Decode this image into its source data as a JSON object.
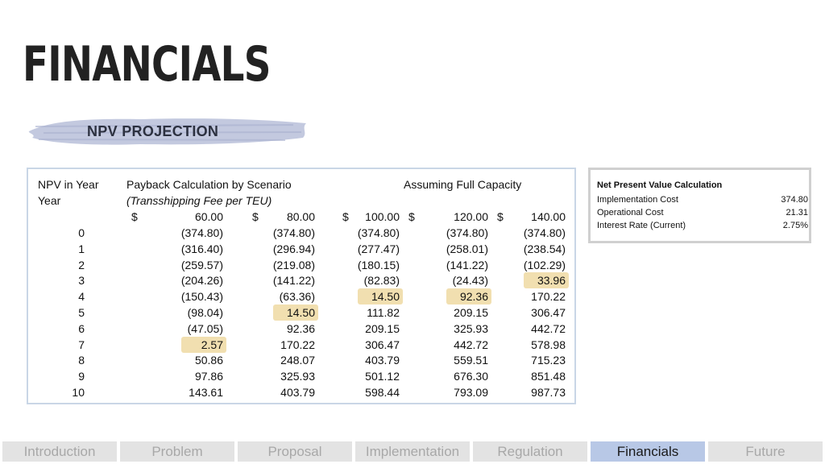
{
  "title": "FINANCIALS",
  "section_label": "NPV PROJECTION",
  "table": {
    "h1_left": "NPV in Year",
    "h1_mid": "Payback Calculation by Scenario",
    "h1_right": "Assuming Full Capacity",
    "h2_left": "Year",
    "h2_mid": "(Transshipping Fee per TEU)",
    "fees": [
      "60.00",
      "80.00",
      "100.00",
      "120.00",
      "140.00"
    ],
    "currency": "$",
    "rows": [
      {
        "year": "0",
        "v": [
          "(374.80)",
          "(374.80)",
          "(374.80)",
          "(374.80)",
          "(374.80)"
        ]
      },
      {
        "year": "1",
        "v": [
          "(316.40)",
          "(296.94)",
          "(277.47)",
          "(258.01)",
          "(238.54)"
        ]
      },
      {
        "year": "2",
        "v": [
          "(259.57)",
          "(219.08)",
          "(180.15)",
          "(141.22)",
          "(102.29)"
        ]
      },
      {
        "year": "3",
        "v": [
          "(204.26)",
          "(141.22)",
          "(82.83)",
          "(24.43)",
          "33.96"
        ]
      },
      {
        "year": "4",
        "v": [
          "(150.43)",
          "(63.36)",
          "14.50",
          "92.36",
          "170.22"
        ]
      },
      {
        "year": "5",
        "v": [
          "(98.04)",
          "14.50",
          "111.82",
          "209.15",
          "306.47"
        ]
      },
      {
        "year": "6",
        "v": [
          "(47.05)",
          "92.36",
          "209.15",
          "325.93",
          "442.72"
        ]
      },
      {
        "year": "7",
        "v": [
          "2.57",
          "170.22",
          "306.47",
          "442.72",
          "578.98"
        ]
      },
      {
        "year": "8",
        "v": [
          "50.86",
          "248.07",
          "403.79",
          "559.51",
          "715.23"
        ]
      },
      {
        "year": "9",
        "v": [
          "97.86",
          "325.93",
          "501.12",
          "676.30",
          "851.48"
        ]
      },
      {
        "year": "10",
        "v": [
          "143.61",
          "403.79",
          "598.44",
          "793.09",
          "987.73"
        ]
      }
    ],
    "highlights": [
      [
        3,
        4
      ],
      [
        4,
        2
      ],
      [
        4,
        3
      ],
      [
        5,
        1
      ],
      [
        7,
        0
      ]
    ],
    "highlight_color": "#efd9a2"
  },
  "npv": {
    "title": "Net Present Value Calculation",
    "rows": [
      {
        "label": "Implementation Cost",
        "value": "374.80"
      },
      {
        "label": "Operational Cost",
        "value": "21.31"
      },
      {
        "label": "Interest Rate (Current)",
        "value": "2.75%"
      }
    ]
  },
  "nav": {
    "tabs": [
      "Introduction",
      "Problem",
      "Proposal",
      "Implementation",
      "Regulation",
      "Financials",
      "Future"
    ],
    "active": 5,
    "active_color": "#b8c8e6"
  }
}
